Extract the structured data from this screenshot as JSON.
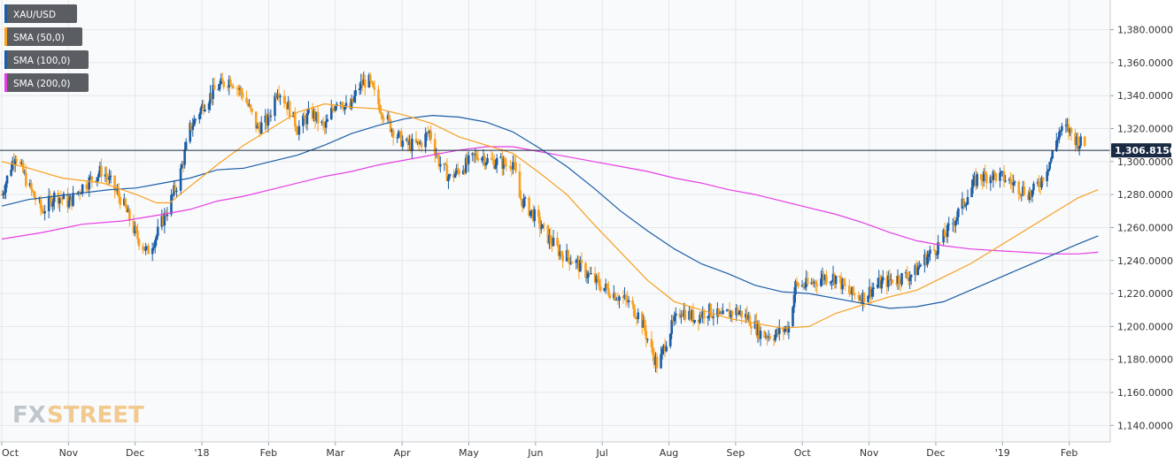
{
  "chart_data": {
    "type": "candlestick",
    "instrument": "XAU/USD",
    "timeframe": "daily",
    "ylim": [
      1130,
      1398
    ],
    "grid": true,
    "legend_placement": "top-left",
    "yticks": [
      "1,140.0000",
      "1,160.0000",
      "1,180.0000",
      "1,200.0000",
      "1,220.0000",
      "1,240.0000",
      "1,260.0000",
      "1,280.0000",
      "1,300.0000",
      "1,320.0000",
      "1,340.0000",
      "1,360.0000",
      "1,380.0000"
    ],
    "ytick_values": [
      1140,
      1160,
      1180,
      1200,
      1220,
      1240,
      1260,
      1280,
      1300,
      1320,
      1340,
      1360,
      1380
    ],
    "xticks": [
      "Oct",
      "Nov",
      "Dec",
      "'18",
      "Feb",
      "Mar",
      "Apr",
      "May",
      "Jun",
      "Jul",
      "Aug",
      "Sep",
      "Oct",
      "Nov",
      "Dec",
      "'19",
      "Feb"
    ],
    "last_price": 1306.815,
    "last_price_label": "1,306.81500",
    "colors": {
      "up_candle": "#1b5da6",
      "down_candle": "#f7a021",
      "sma50": "#f7a021",
      "sma100": "#1b5da6",
      "sma200": "#e53ee6",
      "price_line": "#1a2a44",
      "price_tag": "#1a2a44"
    },
    "legend": [
      {
        "label": "XAU/USD",
        "color": "#1b5da6"
      },
      {
        "label": "SMA (50,0)",
        "color": "#f7a021"
      },
      {
        "label": "SMA (100,0)",
        "color": "#1b5da6"
      },
      {
        "label": "SMA (200,0)",
        "color": "#e53ee6"
      }
    ],
    "close_anchors": [
      [
        0,
        1280
      ],
      [
        10,
        1305
      ],
      [
        20,
        1285
      ],
      [
        30,
        1270
      ],
      [
        40,
        1280
      ],
      [
        50,
        1275
      ],
      [
        60,
        1285
      ],
      [
        75,
        1295
      ],
      [
        90,
        1275
      ],
      [
        100,
        1255
      ],
      [
        108,
        1245
      ],
      [
        115,
        1255
      ],
      [
        125,
        1275
      ],
      [
        132,
        1290
      ],
      [
        140,
        1320
      ],
      [
        150,
        1335
      ],
      [
        160,
        1345
      ],
      [
        170,
        1350
      ],
      [
        180,
        1340
      ],
      [
        190,
        1320
      ],
      [
        198,
        1325
      ],
      [
        205,
        1345
      ],
      [
        212,
        1335
      ],
      [
        220,
        1320
      ],
      [
        230,
        1330
      ],
      [
        240,
        1320
      ],
      [
        250,
        1340
      ],
      [
        258,
        1330
      ],
      [
        265,
        1345
      ],
      [
        272,
        1350
      ],
      [
        280,
        1335
      ],
      [
        290,
        1320
      ],
      [
        300,
        1310
      ],
      [
        310,
        1310
      ],
      [
        318,
        1318
      ],
      [
        325,
        1300
      ],
      [
        333,
        1290
      ],
      [
        340,
        1295
      ],
      [
        348,
        1300
      ],
      [
        355,
        1305
      ],
      [
        362,
        1300
      ],
      [
        370,
        1300
      ],
      [
        375,
        1298
      ],
      [
        380,
        1300
      ],
      [
        385,
        1278
      ],
      [
        395,
        1268
      ],
      [
        405,
        1255
      ],
      [
        415,
        1245
      ],
      [
        425,
        1240
      ],
      [
        435,
        1232
      ],
      [
        445,
        1225
      ],
      [
        455,
        1220
      ],
      [
        465,
        1215
      ],
      [
        475,
        1205
      ],
      [
        483,
        1185
      ],
      [
        488,
        1175
      ],
      [
        495,
        1195
      ],
      [
        505,
        1210
      ],
      [
        515,
        1205
      ],
      [
        525,
        1210
      ],
      [
        535,
        1205
      ],
      [
        545,
        1210
      ],
      [
        555,
        1205
      ],
      [
        565,
        1195
      ],
      [
        575,
        1195
      ],
      [
        585,
        1200
      ],
      [
        590,
        1225
      ],
      [
        600,
        1225
      ],
      [
        610,
        1230
      ],
      [
        620,
        1230
      ],
      [
        630,
        1220
      ],
      [
        640,
        1218
      ],
      [
        650,
        1225
      ],
      [
        660,
        1228
      ],
      [
        670,
        1230
      ],
      [
        678,
        1232
      ],
      [
        685,
        1240
      ],
      [
        695,
        1248
      ],
      [
        705,
        1260
      ],
      [
        715,
        1275
      ],
      [
        725,
        1290
      ],
      [
        735,
        1292
      ],
      [
        745,
        1290
      ],
      [
        755,
        1285
      ],
      [
        765,
        1280
      ],
      [
        772,
        1288
      ],
      [
        780,
        1302
      ],
      [
        786,
        1318
      ],
      [
        792,
        1320
      ],
      [
        800,
        1312
      ],
      [
        805,
        1310
      ]
    ],
    "sma50": [
      [
        0,
        1300
      ],
      [
        20,
        1296
      ],
      [
        45,
        1290
      ],
      [
        75,
        1287
      ],
      [
        100,
        1280
      ],
      [
        115,
        1275
      ],
      [
        125,
        1275
      ],
      [
        140,
        1285
      ],
      [
        160,
        1298
      ],
      [
        180,
        1310
      ],
      [
        200,
        1320
      ],
      [
        220,
        1330
      ],
      [
        240,
        1335
      ],
      [
        260,
        1333
      ],
      [
        280,
        1332
      ],
      [
        300,
        1328
      ],
      [
        320,
        1323
      ],
      [
        340,
        1315
      ],
      [
        360,
        1310
      ],
      [
        380,
        1305
      ],
      [
        400,
        1293
      ],
      [
        420,
        1280
      ],
      [
        440,
        1262
      ],
      [
        460,
        1245
      ],
      [
        480,
        1228
      ],
      [
        500,
        1215
      ],
      [
        520,
        1210
      ],
      [
        540,
        1205
      ],
      [
        560,
        1202
      ],
      [
        580,
        1199
      ],
      [
        600,
        1200
      ],
      [
        620,
        1208
      ],
      [
        640,
        1213
      ],
      [
        660,
        1218
      ],
      [
        680,
        1222
      ],
      [
        700,
        1230
      ],
      [
        720,
        1238
      ],
      [
        740,
        1248
      ],
      [
        760,
        1258
      ],
      [
        780,
        1268
      ],
      [
        800,
        1278
      ],
      [
        815,
        1283
      ]
    ],
    "sma100": [
      [
        0,
        1273
      ],
      [
        20,
        1277
      ],
      [
        40,
        1279
      ],
      [
        60,
        1281
      ],
      [
        80,
        1283
      ],
      [
        100,
        1284
      ],
      [
        120,
        1287
      ],
      [
        140,
        1290
      ],
      [
        160,
        1295
      ],
      [
        180,
        1296
      ],
      [
        200,
        1300
      ],
      [
        220,
        1304
      ],
      [
        240,
        1310
      ],
      [
        260,
        1317
      ],
      [
        280,
        1322
      ],
      [
        300,
        1326
      ],
      [
        320,
        1328
      ],
      [
        340,
        1327
      ],
      [
        360,
        1324
      ],
      [
        380,
        1318
      ],
      [
        400,
        1308
      ],
      [
        420,
        1297
      ],
      [
        440,
        1284
      ],
      [
        460,
        1270
      ],
      [
        480,
        1258
      ],
      [
        500,
        1247
      ],
      [
        520,
        1238
      ],
      [
        540,
        1232
      ],
      [
        560,
        1225
      ],
      [
        580,
        1221
      ],
      [
        600,
        1220
      ],
      [
        620,
        1217
      ],
      [
        640,
        1214
      ],
      [
        660,
        1211
      ],
      [
        680,
        1212
      ],
      [
        700,
        1215
      ],
      [
        720,
        1222
      ],
      [
        740,
        1229
      ],
      [
        760,
        1236
      ],
      [
        780,
        1243
      ],
      [
        800,
        1250
      ],
      [
        815,
        1255
      ]
    ],
    "sma200": [
      [
        0,
        1253
      ],
      [
        30,
        1257
      ],
      [
        60,
        1262
      ],
      [
        90,
        1264
      ],
      [
        120,
        1268
      ],
      [
        140,
        1271
      ],
      [
        160,
        1276
      ],
      [
        180,
        1279
      ],
      [
        200,
        1283
      ],
      [
        220,
        1287
      ],
      [
        240,
        1291
      ],
      [
        260,
        1294
      ],
      [
        280,
        1298
      ],
      [
        300,
        1301
      ],
      [
        320,
        1304
      ],
      [
        340,
        1307
      ],
      [
        360,
        1309
      ],
      [
        380,
        1309
      ],
      [
        400,
        1306
      ],
      [
        420,
        1303
      ],
      [
        440,
        1300
      ],
      [
        460,
        1297
      ],
      [
        480,
        1294
      ],
      [
        500,
        1290
      ],
      [
        520,
        1287
      ],
      [
        540,
        1283
      ],
      [
        560,
        1280
      ],
      [
        580,
        1276
      ],
      [
        600,
        1272
      ],
      [
        620,
        1268
      ],
      [
        640,
        1263
      ],
      [
        660,
        1257
      ],
      [
        680,
        1252
      ],
      [
        700,
        1249
      ],
      [
        720,
        1247
      ],
      [
        740,
        1246
      ],
      [
        760,
        1245
      ],
      [
        780,
        1244
      ],
      [
        800,
        1244
      ],
      [
        815,
        1245
      ]
    ]
  },
  "price_tag": {
    "text": "1,306.81500"
  },
  "watermark": {
    "part1": "FX",
    "part2": "STREET"
  }
}
